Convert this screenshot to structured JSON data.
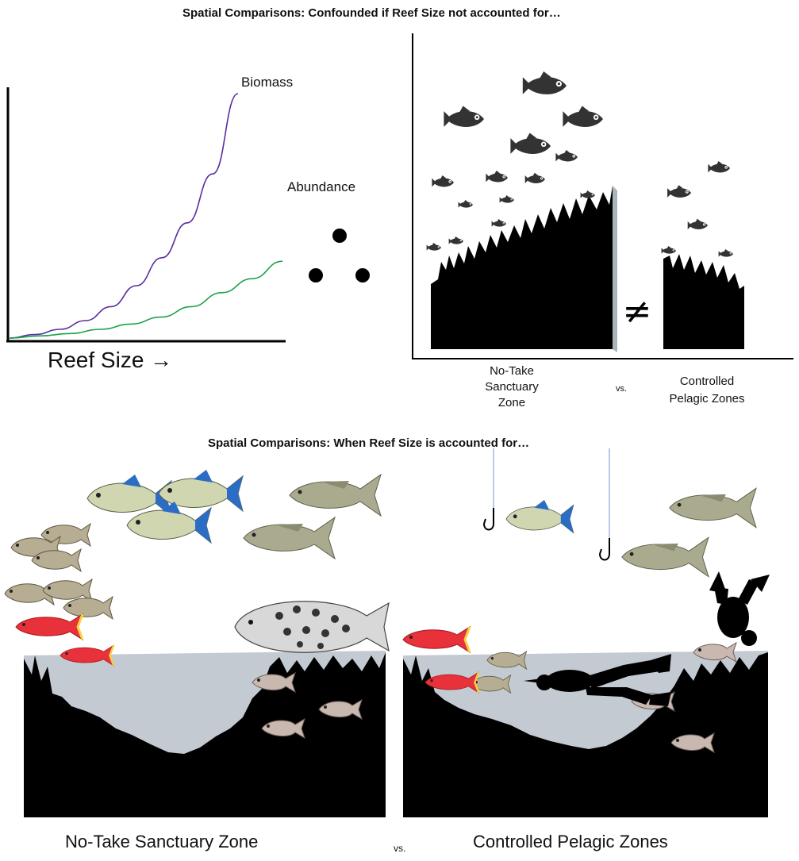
{
  "top_title": "Spatial Comparisons: Confounded if Reef Size not accounted for…",
  "bottom_title": "Spatial Comparisons: When Reef Size is accounted for…",
  "chart_data": {
    "type": "line",
    "xlabel": "Reef Size →",
    "ylabel": "",
    "series": [
      {
        "name": "Biomass",
        "values": [
          0,
          1,
          2.5,
          5,
          9,
          15,
          23,
          33,
          47,
          70
        ]
      },
      {
        "name": "Abundance",
        "values": [
          0,
          0.6,
          1.3,
          2.5,
          4,
          6,
          9,
          13,
          17,
          22
        ]
      }
    ]
  },
  "therefore_symbol": "∴",
  "not_equal": "≠",
  "top_labels": {
    "left_zone": [
      "No-Take",
      "Sanctuary",
      "Zone"
    ],
    "vs": "vs.",
    "right_zone": [
      "Controlled",
      "Pelagic Zones"
    ]
  },
  "bottom_labels": {
    "left_zone": "No-Take Sanctuary Zone",
    "vs": "vs.",
    "right_zone": "Controlled Pelagic Zones"
  },
  "colors": {
    "biomass": "#5b2d9e",
    "abundance": "#1aa34a",
    "silhouette": "#000000",
    "fish_dark": "#333333",
    "jack_fin": "#2b6cc4",
    "jack_body": "#cfd6b0",
    "snapper": "#a9aa8e",
    "red_fish": "#e8313a",
    "grunt": "#b6ad92",
    "grouper": "#d8d8d8",
    "line": "#8ea6d8"
  }
}
